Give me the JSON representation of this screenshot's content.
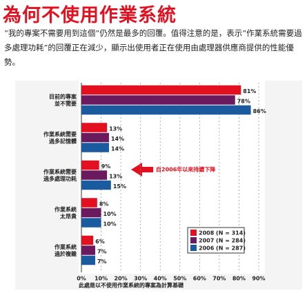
{
  "header": {
    "title": "為何不使用作業系統",
    "text": "“我的專案不需要用到這個”仍然是最多的回覆。值得注意的是，表示“作業系統需要過多處理功耗”的回覆正在減少，顯示出使用者正在使用由處理器供應商提供的性能優勢。"
  },
  "chart_data": {
    "type": "bar",
    "orientation": "horizontal",
    "categories": [
      "目前的專案\n並不需要",
      "作業系統需要\n過多記憶體",
      "作業系統需要\n過多處理功耗",
      "作業系統\n太昂貴",
      "作業系統\n過於複雜"
    ],
    "series": [
      {
        "name": "2008 (N = 314)",
        "color": "#e3101f",
        "values": [
          81,
          13,
          9,
          8,
          6
        ],
        "value_labels": [
          "81%",
          "13%",
          "9%",
          "8%",
          "6%"
        ]
      },
      {
        "name": "2007 (N = 284)",
        "color": "#6b1a5e",
        "values": [
          78,
          14,
          13,
          10,
          7
        ],
        "value_labels": [
          "78%",
          "14%",
          "13%",
          "10%",
          "7%"
        ]
      },
      {
        "name": "2006 (N = 287)",
        "color": "#1a5a9e",
        "values": [
          86,
          14,
          15,
          10,
          7
        ],
        "value_labels": [
          "86%",
          "14%",
          "15%",
          "10%",
          "7%"
        ]
      }
    ],
    "xlim": [
      0,
      90
    ],
    "xticks": [
      {
        "value": 0,
        "label": "0%"
      },
      {
        "value": 10,
        "label": "10%"
      },
      {
        "value": 20,
        "label": "20%"
      },
      {
        "value": 30,
        "label": "30%"
      },
      {
        "value": 40,
        "label": "40%"
      },
      {
        "value": 50,
        "label": "50%"
      },
      {
        "value": 60,
        "label": "60%"
      },
      {
        "value": 70,
        "label": "70%"
      },
      {
        "value": 80,
        "label": "80%"
      },
      {
        "value": 90,
        "label": "90%"
      }
    ],
    "grid": true,
    "legend": "lower right",
    "annotation": "自2006年以來持續下降",
    "footnote": "此處是以不使用作業系統的專案為計算基礎"
  }
}
